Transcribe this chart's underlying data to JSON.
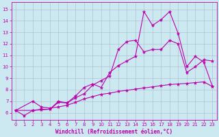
{
  "title": "",
  "xlabel": "Windchill (Refroidissement éolien,°C)",
  "bg_color": "#cce8f0",
  "line_color": "#bb00aa",
  "xlim": [
    -0.5,
    23.5
  ],
  "ylim": [
    5.4,
    15.6
  ],
  "xticks": [
    0,
    1,
    2,
    3,
    4,
    5,
    6,
    7,
    8,
    9,
    10,
    11,
    12,
    13,
    14,
    15,
    16,
    17,
    18,
    19,
    20,
    21,
    22,
    23
  ],
  "yticks": [
    6,
    7,
    8,
    9,
    10,
    11,
    12,
    13,
    14,
    15
  ],
  "curve1_x": [
    0,
    1,
    2,
    3,
    4,
    5,
    6,
    7,
    8,
    9,
    10,
    11,
    12,
    13,
    14,
    15,
    16,
    17,
    18,
    19,
    20,
    21,
    22,
    23
  ],
  "curve1_y": [
    6.2,
    5.75,
    6.2,
    6.3,
    6.3,
    6.9,
    6.85,
    7.45,
    8.2,
    8.5,
    8.2,
    9.5,
    10.1,
    10.5,
    10.9,
    14.8,
    13.6,
    14.1,
    14.8,
    12.9,
    10.0,
    10.9,
    10.4,
    8.3
  ],
  "curve2_x": [
    0,
    2,
    3,
    4,
    5,
    6,
    7,
    8,
    9,
    10,
    11,
    12,
    13,
    14,
    15,
    16,
    17,
    18,
    19,
    20,
    21,
    22,
    23
  ],
  "curve2_y": [
    6.2,
    6.2,
    6.25,
    6.3,
    7.0,
    6.85,
    7.3,
    7.65,
    8.4,
    8.8,
    9.2,
    11.5,
    12.2,
    12.3,
    11.3,
    11.5,
    11.5,
    12.3,
    12.0,
    9.5,
    10.0,
    10.6,
    10.5
  ],
  "curve3_x": [
    0,
    2,
    3,
    4,
    5,
    6,
    7,
    8,
    9,
    10,
    11,
    12,
    13,
    14,
    15,
    16,
    17,
    18,
    19,
    20,
    21,
    22,
    23
  ],
  "curve3_y": [
    6.2,
    7.0,
    6.5,
    6.4,
    6.5,
    6.65,
    6.9,
    7.2,
    7.4,
    7.6,
    7.7,
    7.85,
    7.95,
    8.05,
    8.15,
    8.25,
    8.35,
    8.45,
    8.5,
    8.55,
    8.62,
    8.68,
    8.28
  ]
}
